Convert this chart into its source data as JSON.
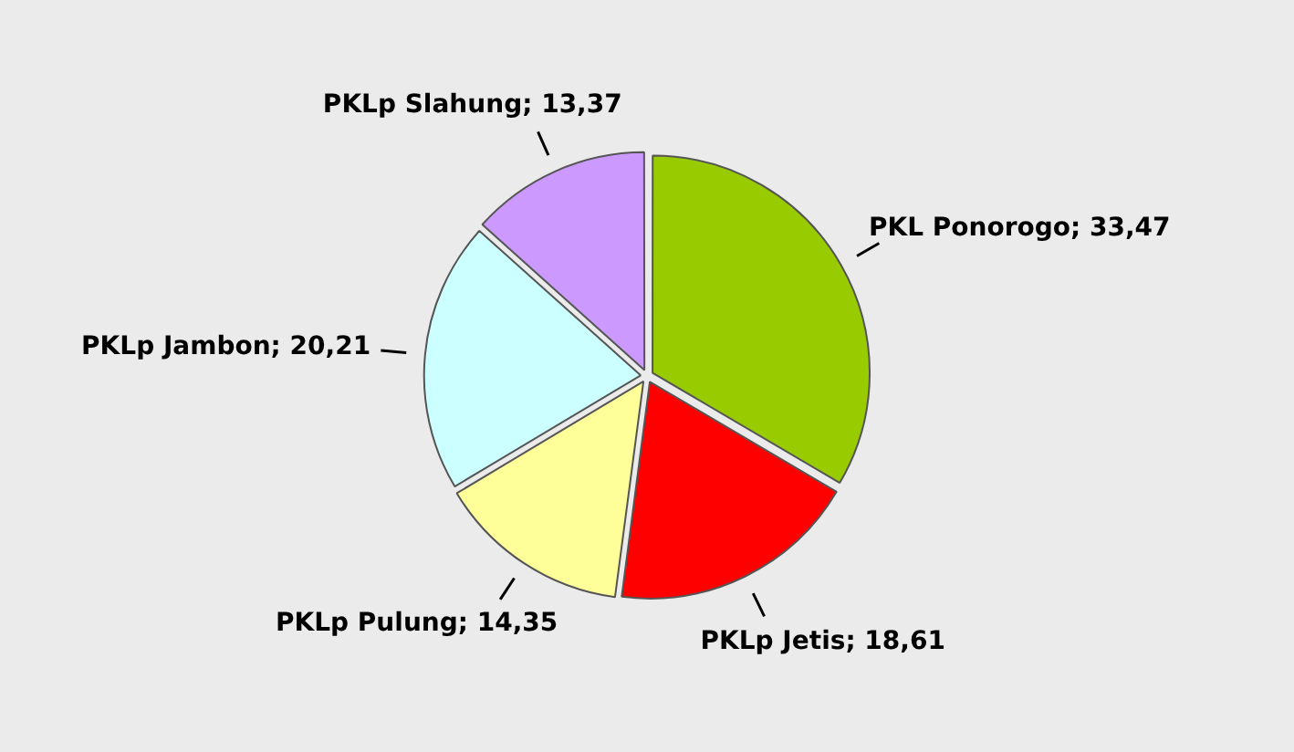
{
  "chart_data": {
    "type": "pie",
    "categories": [
      "PKL Ponorogo",
      "PKLp Jetis",
      "PKLp Pulung",
      "PKLp Jambon",
      "PKLp Slahung"
    ],
    "values": [
      33.47,
      18.61,
      14.35,
      20.21,
      13.37
    ],
    "value_labels": [
      "33,47",
      "18,61",
      "14,35",
      "20,21",
      "13,37"
    ],
    "colors": [
      "#99cc00",
      "#ff0000",
      "#ffff99",
      "#ccffff",
      "#cc99ff"
    ],
    "legend": false
  }
}
